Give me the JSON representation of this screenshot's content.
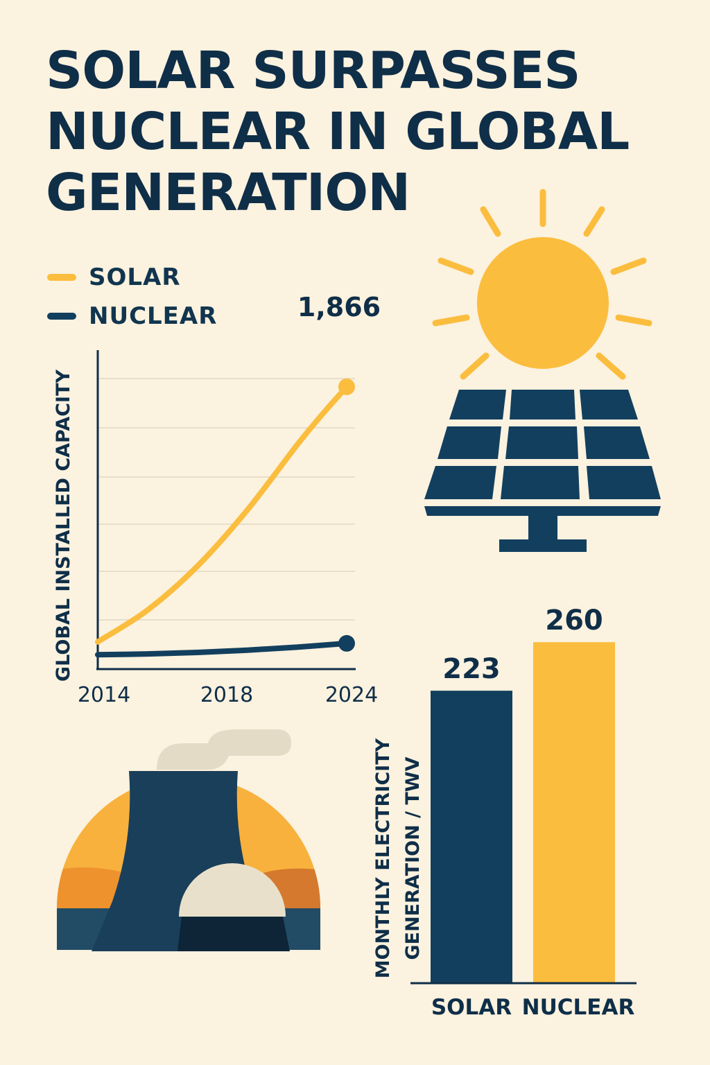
{
  "title_lines": [
    "SOLAR SURPASSES",
    "NUCLEAR IN GLOBAL",
    "GENERATION"
  ],
  "colors": {
    "background": "#fbf2df",
    "solar": "#fbbd3e",
    "nuclear": "#123f5e",
    "text": "#0f2e48",
    "grid": "#e7dfc9"
  },
  "legend": [
    {
      "label": "SOLAR",
      "color": "#fbbd3e"
    },
    {
      "label": "NUCLEAR",
      "color": "#123f5e"
    }
  ],
  "icons": [
    "sun-icon",
    "solar-panel-icon",
    "nuclear-plant-icon"
  ],
  "chart_data": [
    {
      "type": "line",
      "title": "",
      "ylabel": "GLOBAL INSTALLED CAPACITY",
      "xlabel": "",
      "x_ticks": [
        "2014",
        "2018",
        "2024"
      ],
      "xlim": [
        2014,
        2024
      ],
      "ylim": [
        0,
        2200
      ],
      "grid": true,
      "legend": "top-left",
      "series": [
        {
          "name": "SOLAR",
          "color": "#fbbd3e",
          "x": [
            2014,
            2016,
            2018,
            2020,
            2022,
            2023,
            2024
          ],
          "y": [
            180,
            390,
            680,
            1050,
            1480,
            1680,
            1866
          ]
        },
        {
          "name": "NUCLEAR",
          "color": "#123f5e",
          "x": [
            2014,
            2016,
            2018,
            2020,
            2022,
            2024
          ],
          "y": [
            95,
            100,
            110,
            125,
            145,
            170
          ]
        }
      ],
      "annotations": [
        {
          "text": "1,866",
          "series": "SOLAR",
          "x": 2024,
          "y": 1866
        }
      ]
    },
    {
      "type": "bar",
      "title": "",
      "ylabel_lines": [
        "MONTHLY ELECTRICITY",
        "GENERATION / TWV"
      ],
      "categories": [
        "SOLAR",
        "NUCLEAR"
      ],
      "values": [
        223,
        260
      ],
      "value_labels": [
        "223",
        "260"
      ],
      "colors": [
        "#123f5e",
        "#fbbd3e"
      ],
      "ylim": [
        0,
        295
      ]
    }
  ]
}
